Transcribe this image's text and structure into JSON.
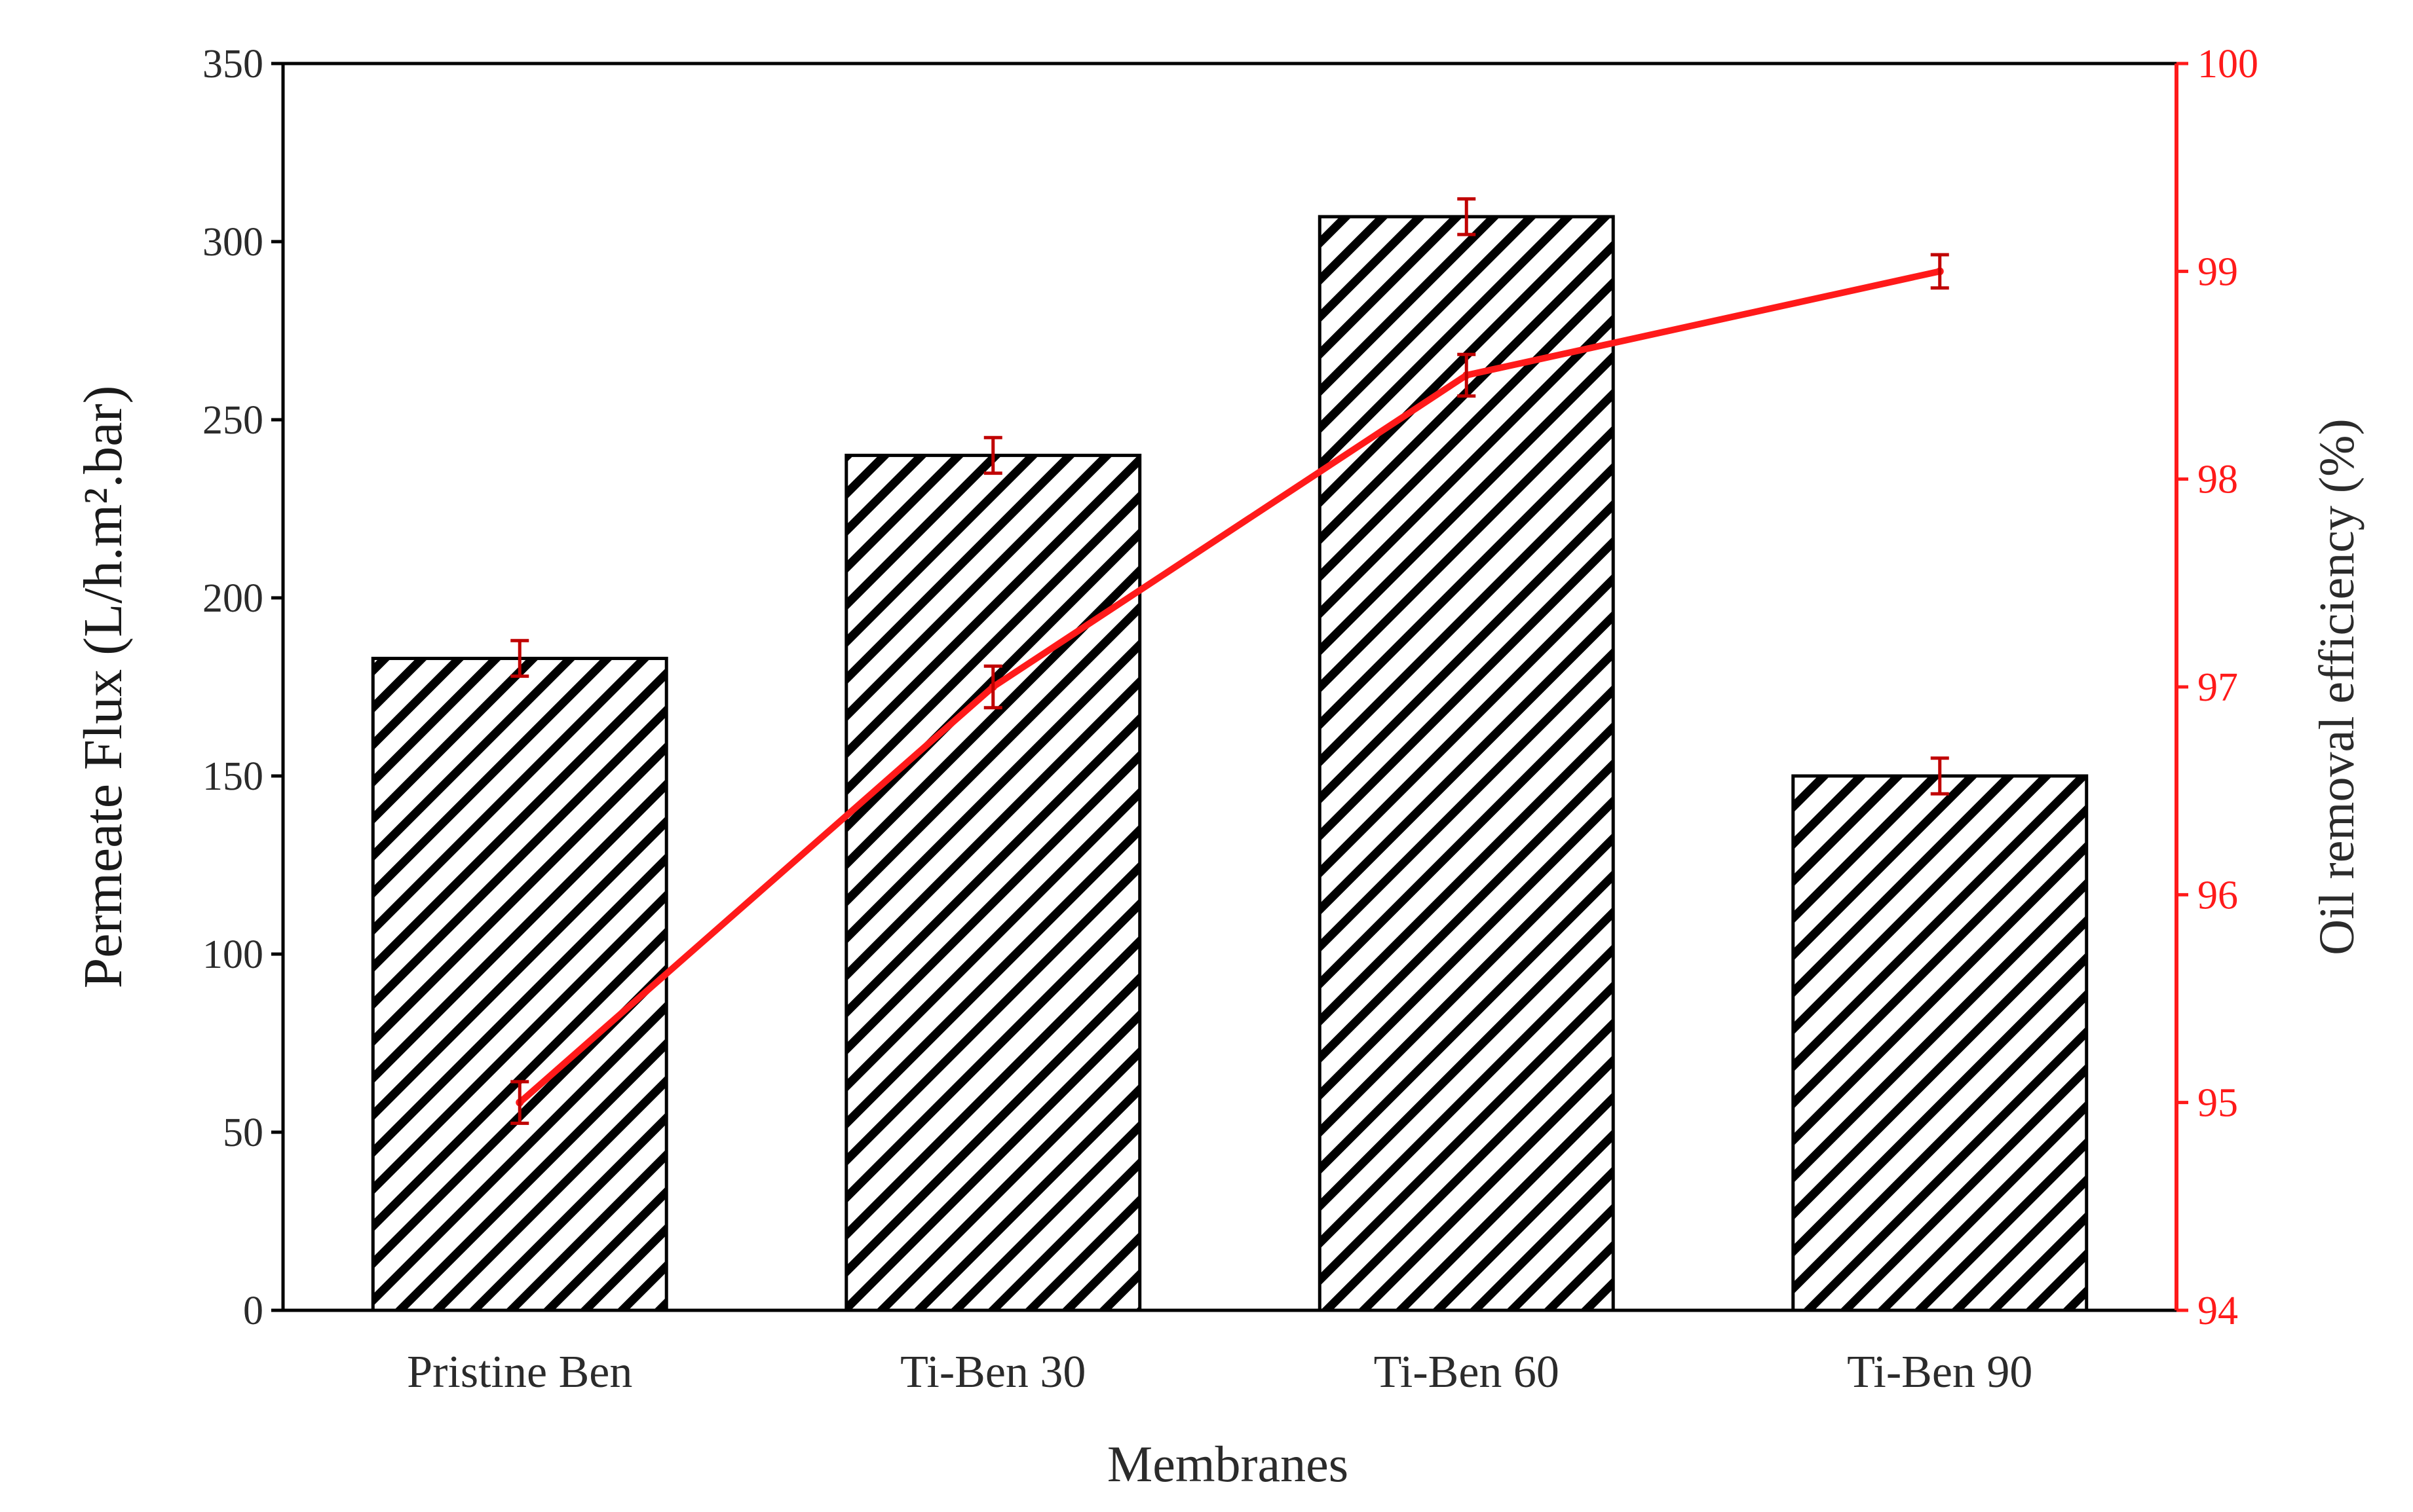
{
  "chart_data": {
    "type": "bar",
    "categories": [
      "Pristine Ben",
      "Ti-Ben 30",
      "Ti-Ben 60",
      "Ti-Ben 90"
    ],
    "xlabel": "Membranes",
    "ylabel": "Permeate Flux (L/h.m².bar)",
    "y2label": "Oil removal efficiency (%)",
    "ylim": [
      0,
      350
    ],
    "y2lim": [
      94,
      100
    ],
    "yticks": [
      "0",
      "50",
      "100",
      "150",
      "200",
      "250",
      "300",
      "350"
    ],
    "y2ticks": [
      "94",
      "95",
      "96",
      "97",
      "98",
      "99",
      "100"
    ],
    "grid": false,
    "bars": {
      "values": [
        183,
        240,
        307,
        150
      ],
      "errors": [
        5,
        5,
        5,
        5
      ],
      "fill": "diagonal-hatch",
      "color": "#000000"
    },
    "line": {
      "axis": "right",
      "values": [
        95.0,
        97.0,
        98.5,
        99.0
      ],
      "errors": [
        0.1,
        0.1,
        0.1,
        0.08
      ],
      "color": "#ff1a1a"
    },
    "colors": {
      "right_axis": "#ff1a1a",
      "line_errorbar": "#c00000"
    }
  }
}
